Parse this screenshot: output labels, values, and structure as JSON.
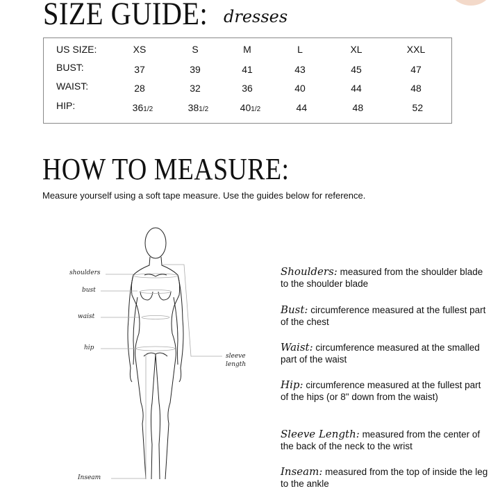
{
  "header": {
    "title": "SIZE GUIDE:",
    "subtitle": "dresses",
    "accent_color": "#f3d9c9"
  },
  "size_table": {
    "columns": [
      "US SIZE:",
      "XS",
      "S",
      "M",
      "L",
      "XL",
      "XXL"
    ],
    "rows": [
      {
        "label": "BUST:",
        "values": [
          "37",
          "39",
          "41",
          "43",
          "45",
          "47"
        ]
      },
      {
        "label": "WAIST:",
        "values": [
          "28",
          "32",
          "36",
          "40",
          "44",
          "48"
        ]
      },
      {
        "label": "HIP:",
        "values": [
          {
            "whole": "36",
            "frac": "1/2"
          },
          {
            "whole": "38",
            "frac": "1/2"
          },
          {
            "whole": "40",
            "frac": "1/2"
          },
          {
            "whole": "44",
            "frac": ""
          },
          {
            "whole": "48",
            "frac": ""
          },
          {
            "whole": "52",
            "frac": ""
          }
        ]
      }
    ]
  },
  "measure": {
    "title": "HOW TO MEASURE:",
    "intro": "Measure yourself using a soft tape measure. Use the guides below for reference.",
    "figure_labels": [
      "shoulders",
      "bust",
      "waist",
      "hip",
      "sleeve length",
      "Inseam"
    ],
    "items": [
      {
        "term": "Shoulders:",
        "text": "measured from the shoulder blade to the shoulder blade"
      },
      {
        "term": "Bust:",
        "text": "circumference measured at the fullest part of the chest"
      },
      {
        "term": "Waist:",
        "text": "circumference measured at the smalled part of the waist"
      },
      {
        "term": "Hip:",
        "text": "circumference measured at the fullest part of the hips (or 8\" down from the waist)"
      },
      {
        "term": "Sleeve Length:",
        "text": "measured from the center of the back of the neck to the wrist"
      },
      {
        "term": "Inseam:",
        "text": "measured from the top of inside the leg to the ankle"
      }
    ]
  }
}
